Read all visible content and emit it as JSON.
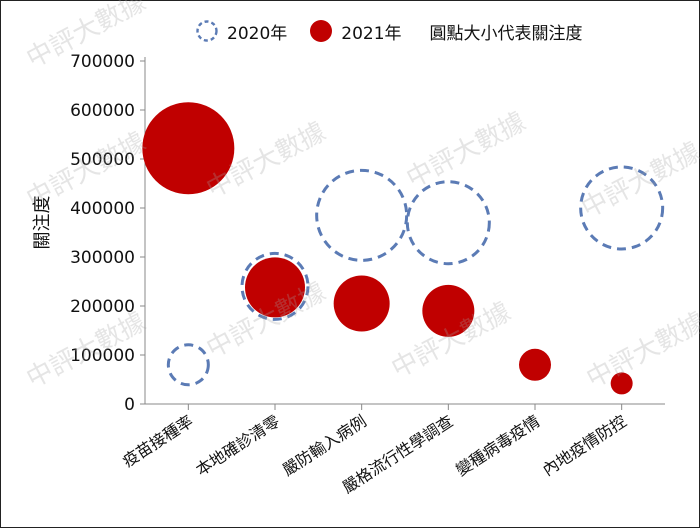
{
  "chart_data": {
    "type": "bubble",
    "ylabel": "關注度",
    "ylim": [
      0,
      700000
    ],
    "yticks": [
      0,
      100000,
      200000,
      300000,
      400000,
      500000,
      600000,
      700000
    ],
    "categories": [
      "疫苗接種率",
      "本地確診清零",
      "嚴防輸入病例",
      "嚴格流行性學調查",
      "變種病毒疫情",
      "內地疫情防控"
    ],
    "series": [
      {
        "name": "2020年",
        "style": "dashed-outline",
        "color": "#5b7bb5",
        "values": [
          80000,
          240000,
          385000,
          370000,
          null,
          400000
        ],
        "sizes": [
          20,
          33,
          45,
          41,
          1,
          41
        ]
      },
      {
        "name": "2021年",
        "style": "filled",
        "color": "#c00000",
        "values": [
          522000,
          238000,
          205000,
          190000,
          80000,
          42000
        ],
        "sizes": [
          46,
          30,
          28,
          26,
          16,
          11
        ]
      }
    ],
    "legend_note": "圓點大小代表關注度",
    "legend_position": "top",
    "grid": false
  },
  "watermark": "中評大數據"
}
